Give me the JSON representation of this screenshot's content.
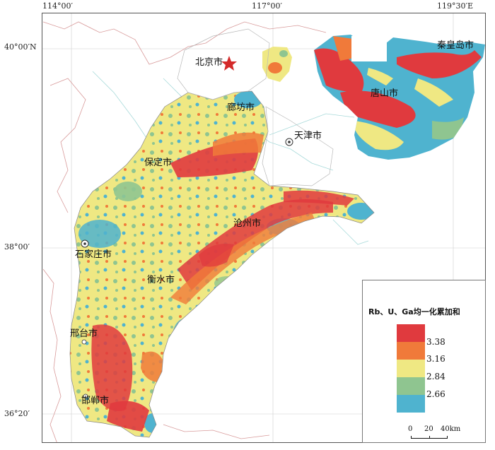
{
  "axes": {
    "top": [
      "114°00′",
      "117°00′",
      "119°30′E"
    ],
    "left": [
      "40°00′N",
      "38°00′",
      "36°20′"
    ]
  },
  "cities": {
    "beijing": "北京市",
    "langfang": "廊坊市",
    "tianjin": "天津市",
    "baoding": "保定市",
    "tangshan": "唐山市",
    "qinhuangdao": "秦皇岛市",
    "cangzhou": "沧州市",
    "shijiazhuang": "石家庄市",
    "hengshui": "衡水市",
    "xingtai": "邢台市",
    "handan": "邯郸市"
  },
  "legend": {
    "title": "Rb、U、Ga均一化累加和",
    "classes": [
      {
        "color": "#e03a3e",
        "value": "3.38"
      },
      {
        "color": "#f07a3a",
        "value": "3.16"
      },
      {
        "color": "#efe883",
        "value": "2.84"
      },
      {
        "color": "#8fc590",
        "value": "2.66"
      },
      {
        "color": "#4fb3cf",
        "value": ""
      }
    ]
  },
  "scale_bar": {
    "labels": [
      "0",
      "20",
      "40km"
    ]
  },
  "colors": {
    "red": "#e03a3e",
    "orange": "#f07a3a",
    "yellow": "#efe883",
    "green": "#8fc590",
    "blue": "#4fb3cf",
    "boundary": "#d0a7a7",
    "river": "#9fd6d6",
    "capital_star": "#d42a2a"
  }
}
